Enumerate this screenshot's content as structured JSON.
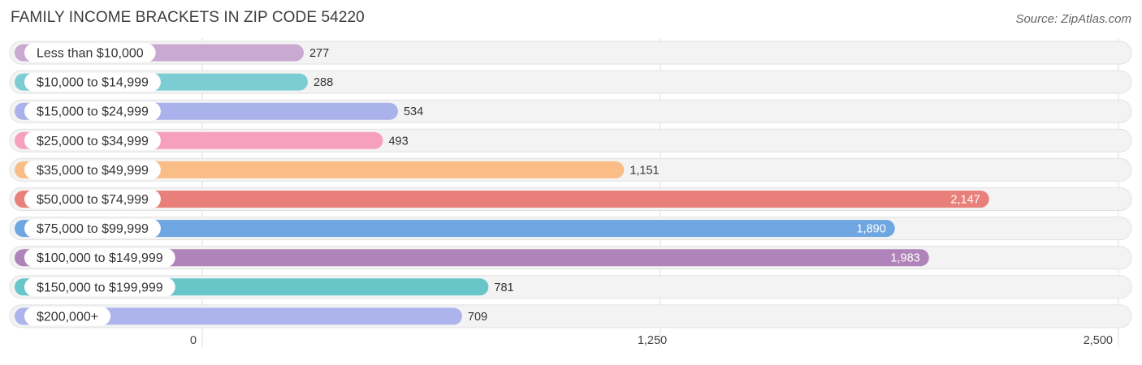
{
  "header": {
    "title": "FAMILY INCOME BRACKETS IN ZIP CODE 54220",
    "source": "Source: ZipAtlas.com"
  },
  "chart_data": {
    "type": "bar",
    "orientation": "horizontal",
    "title": "FAMILY INCOME BRACKETS IN ZIP CODE 54220",
    "categories": [
      "Less than $10,000",
      "$10,000 to $14,999",
      "$15,000 to $24,999",
      "$25,000 to $34,999",
      "$35,000 to $49,999",
      "$50,000 to $74,999",
      "$75,000 to $99,999",
      "$100,000 to $149,999",
      "$150,000 to $199,999",
      "$200,000+"
    ],
    "values": [
      277,
      288,
      534,
      493,
      1151,
      2147,
      1890,
      1983,
      781,
      709
    ],
    "value_labels": [
      "277",
      "288",
      "534",
      "493",
      "1,151",
      "2,147",
      "1,890",
      "1,983",
      "781",
      "709"
    ],
    "colors": [
      "#c9a8d2",
      "#7ccdd3",
      "#a9b2ea",
      "#f6a0be",
      "#f9bd85",
      "#e87f7a",
      "#6ea6e1",
      "#b083ba",
      "#68c6c8",
      "#adb4ec"
    ],
    "xlim": [
      0,
      2500
    ],
    "ticks": [
      0,
      1250,
      2500
    ],
    "tick_labels": [
      "0",
      "1,250",
      "2,500"
    ],
    "grid": true,
    "legend": "none"
  }
}
